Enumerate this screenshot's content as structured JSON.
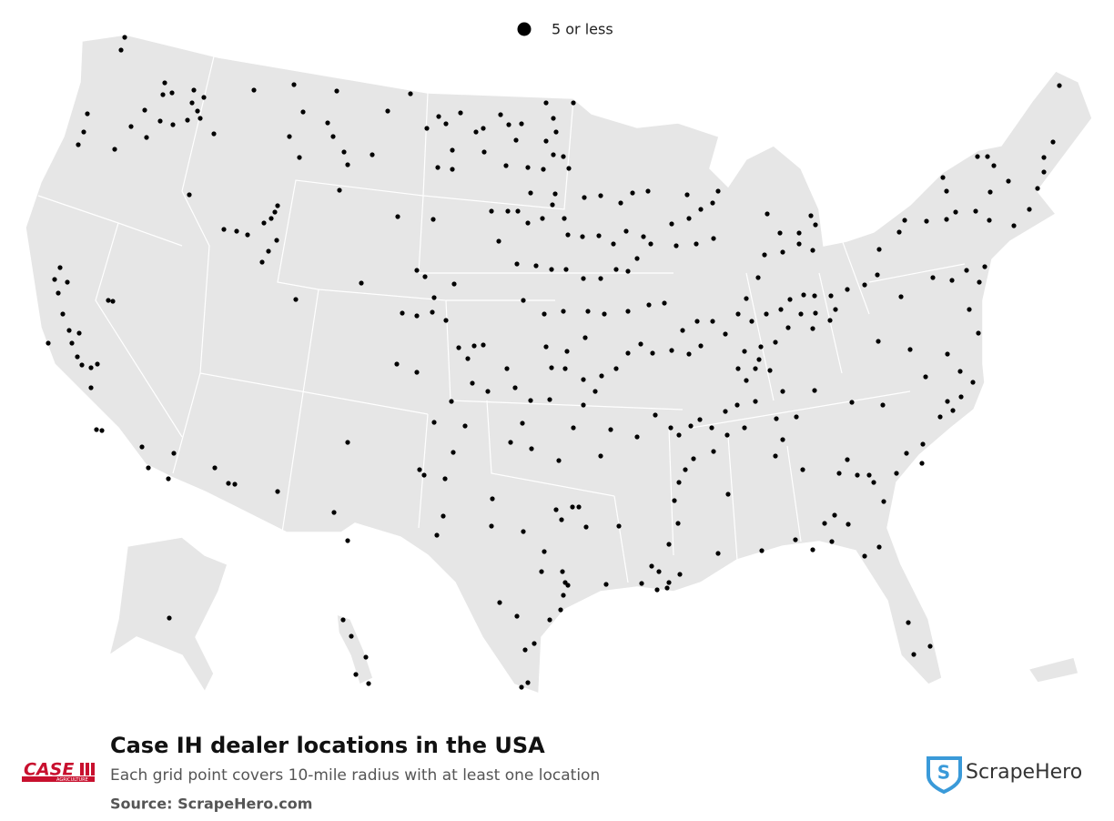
{
  "legend": {
    "label": "5 or less"
  },
  "footer": {
    "title": "Case IH dealer locations in the USA",
    "subtitle": "Each grid point covers 10-mile radius with at least one location",
    "source": "Source: ScrapeHero.com"
  },
  "logos": {
    "case": "CASE",
    "case_sub": "AGRICULTURE",
    "brand": "ScrapeHero"
  }
}
